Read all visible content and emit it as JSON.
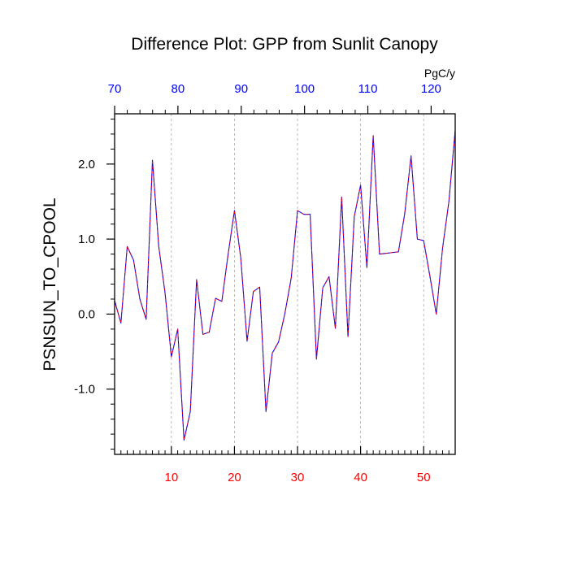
{
  "chart_data": {
    "type": "line",
    "title": "Difference Plot: GPP from Sunlit Canopy",
    "ylabel": "PSNSUN_TO_CPOOL",
    "xlabel": "",
    "top_axis_units": "PgC/y",
    "xlim": [
      1,
      55
    ],
    "ylim": [
      -1.87,
      2.67
    ],
    "grid": "vertical dashed at major bottom ticks",
    "colors": {
      "line_primary": "#0000ff",
      "line_secondary": "#ff0000",
      "bottom_ticks": "#ff0000",
      "top_ticks": "#0000ff",
      "grid": "#aaaaaa"
    },
    "bottom_ticks": [
      {
        "value": 10,
        "label": "10"
      },
      {
        "value": 20,
        "label": "20"
      },
      {
        "value": 30,
        "label": "30"
      },
      {
        "value": 40,
        "label": "40"
      },
      {
        "value": 50,
        "label": "50"
      }
    ],
    "top_ticks": [
      {
        "value": 70,
        "label": "70"
      },
      {
        "value": 80,
        "label": "80"
      },
      {
        "value": 90,
        "label": "90"
      },
      {
        "value": 100,
        "label": "100"
      },
      {
        "value": 110,
        "label": "110"
      },
      {
        "value": 120,
        "label": "120"
      }
    ],
    "top_axis_range": [
      70,
      123.8
    ],
    "y_ticks": [
      {
        "value": 2.0,
        "label": "2.0"
      },
      {
        "value": 1.0,
        "label": "1.0"
      },
      {
        "value": 0.0,
        "label": "0.0"
      },
      {
        "value": -1.0,
        "label": "-1.0"
      }
    ],
    "x": [
      1,
      2,
      3,
      4,
      5,
      6,
      7,
      8,
      9,
      10,
      11,
      12,
      13,
      14,
      15,
      16,
      17,
      18,
      19,
      20,
      21,
      22,
      23,
      24,
      25,
      26,
      27,
      28,
      29,
      30,
      31,
      32,
      33,
      34,
      35,
      36,
      37,
      38,
      39,
      40,
      41,
      42,
      43,
      44,
      45,
      46,
      47,
      48,
      49,
      50,
      51,
      52,
      53,
      54,
      55
    ],
    "series": [
      {
        "values": [
          0.18,
          -0.12,
          0.9,
          0.72,
          0.2,
          -0.07,
          2.05,
          0.9,
          0.28,
          -0.57,
          -0.2,
          -1.68,
          -1.3,
          0.46,
          -0.27,
          -0.24,
          0.21,
          0.17,
          0.8,
          1.38,
          0.75,
          -0.36,
          0.3,
          0.36,
          -1.3,
          -0.52,
          -0.37,
          0.01,
          0.48,
          1.38,
          1.33,
          1.33,
          -0.6,
          0.35,
          0.5,
          -0.19,
          1.56,
          -0.3,
          1.3,
          1.72,
          0.62,
          2.38,
          0.8,
          0.81,
          0.82,
          0.83,
          1.34,
          2.11,
          1.0,
          0.98,
          0.5,
          0.0,
          0.88,
          1.5,
          2.45
        ]
      }
    ]
  }
}
